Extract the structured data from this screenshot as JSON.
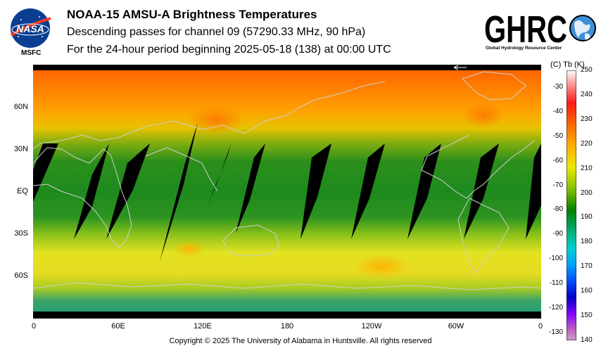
{
  "header": {
    "title": "NOAA-15 AMSU-A Brightness Temperatures",
    "subtitle": "Descending passes for channel 09 (57290.33 MHz, 90 hPa)",
    "period": "For the 24-hour period beginning 2025-05-18 (138) at 00:00 UTC"
  },
  "logos": {
    "nasa_text": "NASA",
    "msfc": "MSFC",
    "ghrc_text": "GHRC",
    "ghrc_subtitle": "Global Hydrology Resource Center"
  },
  "map": {
    "lat_labels": [
      "60N",
      "30N",
      "EQ",
      "30S",
      "60S"
    ],
    "lon_labels": [
      "0",
      "60E",
      "120E",
      "180",
      "120W",
      "60W",
      "0"
    ]
  },
  "colorbar": {
    "header": "(C)  Tb  (K)",
    "celsius": [
      "-30",
      "-40",
      "-50",
      "-60",
      "-70",
      "-80",
      "-90",
      "-100",
      "-110",
      "-120",
      "-130"
    ],
    "kelvin": [
      "250",
      "240",
      "230",
      "220",
      "210",
      "200",
      "190",
      "180",
      "170",
      "160",
      "150",
      "140"
    ],
    "k_min": 140,
    "k_max": 250
  },
  "footer": {
    "copyright": "Copyright © 2025 The University of Alabama in Huntsville.  All rights reserved"
  },
  "colors": {
    "hot": "#ff6a00",
    "warm": "#f5c400",
    "mid": "#1f8a1f",
    "cool": "#1aa37a",
    "land_outline": "#c8c8c8"
  }
}
